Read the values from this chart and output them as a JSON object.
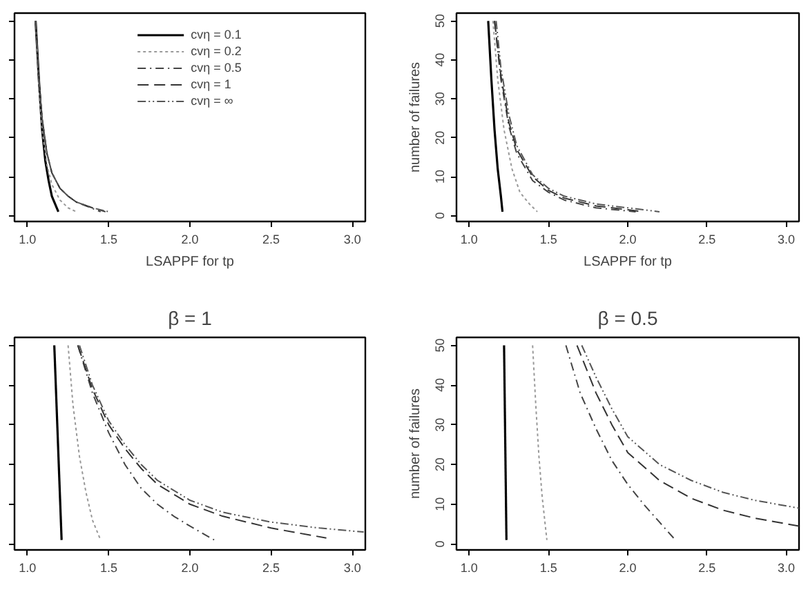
{
  "chart_data": [
    {
      "type": "line",
      "xlabel": "LSAPPF for tp",
      "xlim": [
        0.92,
        3.08
      ],
      "xticks": [
        {
          "value": 1,
          "label": "1.0"
        },
        {
          "value": 1.5,
          "label": "1.5"
        },
        {
          "value": 2,
          "label": "2.0"
        },
        {
          "value": 2.5,
          "label": "2.5"
        },
        {
          "value": 3,
          "label": "3.0"
        }
      ],
      "ylim": [
        -1.5,
        52
      ],
      "yticks": [
        {
          "value": 0,
          "label": null
        },
        {
          "value": 10,
          "label": null
        },
        {
          "value": 20,
          "label": null
        },
        {
          "value": 30,
          "label": null
        },
        {
          "value": 40,
          "label": null
        },
        {
          "value": 50,
          "label": null
        }
      ],
      "tick_labels": "x",
      "grid": false,
      "legend": "top",
      "series": [
        {
          "name": "cvη = 0.1",
          "color": "#000000",
          "line_style": "solid",
          "x": [
            1.05,
            1.07,
            1.09,
            1.11,
            1.13,
            1.15,
            1.17,
            1.19
          ],
          "values": [
            50,
            35,
            22,
            14,
            9,
            5,
            3,
            1
          ]
        },
        {
          "name": "cvη = 0.2",
          "color": "#999999",
          "line_style": "dotted",
          "x": [
            1.05,
            1.07,
            1.09,
            1.12,
            1.15,
            1.2,
            1.25,
            1.3
          ],
          "values": [
            50,
            33,
            22,
            13,
            8,
            4,
            2,
            1
          ]
        },
        {
          "name": "cvη = 0.5",
          "color": "#444444",
          "line_style": "dashdot",
          "x": [
            1.05,
            1.07,
            1.09,
            1.12,
            1.15,
            1.2,
            1.25,
            1.3,
            1.45
          ],
          "values": [
            50,
            35,
            25,
            16,
            11,
            7,
            5,
            3.5,
            1
          ]
        },
        {
          "name": "cvη = 1",
          "color": "#333333",
          "line_style": "dashed",
          "x": [
            1.05,
            1.07,
            1.09,
            1.12,
            1.15,
            1.2,
            1.25,
            1.3,
            1.4,
            1.48
          ],
          "values": [
            50,
            35,
            25,
            16,
            11,
            7,
            5,
            3.5,
            2,
            1
          ]
        },
        {
          "name": "cvη = ∞",
          "color": "#555555",
          "line_style": "dashdotdot",
          "x": [
            1.05,
            1.07,
            1.09,
            1.12,
            1.15,
            1.2,
            1.25,
            1.3,
            1.4,
            1.5
          ],
          "values": [
            50,
            35,
            25,
            16,
            11,
            7,
            5,
            3.5,
            2,
            1
          ]
        }
      ]
    },
    {
      "type": "line",
      "xlabel": "LSAPPF for tp",
      "ylabel": "number of failures",
      "xlim": [
        0.92,
        3.08
      ],
      "xticks": [
        {
          "value": 1,
          "label": "1.0"
        },
        {
          "value": 1.5,
          "label": "1.5"
        },
        {
          "value": 2,
          "label": "2.0"
        },
        {
          "value": 2.5,
          "label": "2.5"
        },
        {
          "value": 3,
          "label": "3.0"
        }
      ],
      "ylim": [
        -1.5,
        52
      ],
      "yticks": [
        0,
        10,
        20,
        30,
        40,
        50
      ],
      "grid": false,
      "series": [
        {
          "color": "#000000",
          "line_style": "solid",
          "x": [
            1.12,
            1.14,
            1.16,
            1.18,
            1.2,
            1.21
          ],
          "values": [
            50,
            35,
            22,
            12,
            5,
            1
          ]
        },
        {
          "color": "#999999",
          "line_style": "dotted",
          "x": [
            1.15,
            1.18,
            1.22,
            1.27,
            1.32,
            1.38,
            1.43
          ],
          "values": [
            50,
            35,
            22,
            12,
            6,
            3,
            1
          ]
        },
        {
          "color": "#444444",
          "line_style": "dashdot",
          "x": [
            1.16,
            1.2,
            1.25,
            1.3,
            1.4,
            1.5,
            1.6,
            1.8,
            2.05
          ],
          "values": [
            50,
            35,
            23,
            16,
            9,
            6,
            4,
            2,
            1
          ]
        },
        {
          "color": "#333333",
          "line_style": "dashed",
          "x": [
            1.16,
            1.2,
            1.25,
            1.3,
            1.4,
            1.5,
            1.6,
            1.8,
            2.0,
            2.1
          ],
          "values": [
            50,
            36,
            24,
            17,
            10,
            6.5,
            4.5,
            2.5,
            1.5,
            1
          ]
        },
        {
          "color": "#555555",
          "line_style": "dashdotdot",
          "x": [
            1.17,
            1.2,
            1.25,
            1.3,
            1.4,
            1.5,
            1.6,
            1.8,
            2.0,
            2.2
          ],
          "values": [
            50,
            38,
            26,
            18,
            10.5,
            7,
            5,
            3,
            2,
            1
          ]
        }
      ]
    },
    {
      "type": "line",
      "title": "β = 1",
      "xlim": [
        0.92,
        3.08
      ],
      "xticks": [
        {
          "value": 1,
          "label": "1.0"
        },
        {
          "value": 1.5,
          "label": "1.5"
        },
        {
          "value": 2,
          "label": "2.0"
        },
        {
          "value": 2.5,
          "label": "2.5"
        },
        {
          "value": 3,
          "label": "3.0"
        }
      ],
      "ylim": [
        -1.5,
        52
      ],
      "yticks": [
        {
          "value": 0,
          "label": null
        },
        {
          "value": 10,
          "label": null
        },
        {
          "value": 20,
          "label": null
        },
        {
          "value": 30,
          "label": null
        },
        {
          "value": 40,
          "label": null
        },
        {
          "value": 50,
          "label": null
        }
      ],
      "tick_labels": "x",
      "grid": false,
      "series": [
        {
          "color": "#000000",
          "line_style": "solid",
          "x": [
            1.165,
            1.21
          ],
          "values": [
            50,
            1
          ]
        },
        {
          "color": "#999999",
          "line_style": "dotted",
          "x": [
            1.25,
            1.28,
            1.32,
            1.36,
            1.4,
            1.45
          ],
          "values": [
            50,
            35,
            22,
            13,
            6,
            1
          ]
        },
        {
          "color": "#444444",
          "line_style": "dashdot",
          "x": [
            1.31,
            1.4,
            1.5,
            1.6,
            1.7,
            1.8,
            1.9,
            2.0,
            2.15
          ],
          "values": [
            50,
            38,
            28,
            20,
            14,
            10,
            7,
            4.5,
            1
          ]
        },
        {
          "color": "#333333",
          "line_style": "dashed",
          "x": [
            1.31,
            1.4,
            1.5,
            1.6,
            1.7,
            1.8,
            2.0,
            2.2,
            2.5,
            2.84
          ],
          "values": [
            50,
            39,
            30,
            24,
            19,
            15,
            10,
            7,
            4,
            1.5
          ]
        },
        {
          "color": "#555555",
          "line_style": "dashdotdot",
          "x": [
            1.32,
            1.4,
            1.5,
            1.6,
            1.7,
            1.8,
            2.0,
            2.2,
            2.5,
            2.8,
            3.07
          ],
          "values": [
            50,
            40,
            31,
            25,
            20,
            16,
            11,
            8,
            5.5,
            4,
            3
          ]
        }
      ]
    },
    {
      "type": "line",
      "title": "β = 0.5",
      "ylabel": "number of failures",
      "xlim": [
        0.92,
        3.08
      ],
      "xticks": [
        {
          "value": 1,
          "label": "1.0"
        },
        {
          "value": 1.5,
          "label": "1.5"
        },
        {
          "value": 2,
          "label": "2.0"
        },
        {
          "value": 2.5,
          "label": "2.5"
        },
        {
          "value": 3,
          "label": "3.0"
        }
      ],
      "ylim": [
        -1.5,
        52
      ],
      "yticks": [
        0,
        10,
        20,
        30,
        40,
        50
      ],
      "grid": false,
      "series": [
        {
          "color": "#000000",
          "line_style": "solid",
          "x": [
            1.22,
            1.235
          ],
          "values": [
            50,
            1
          ]
        },
        {
          "color": "#999999",
          "line_style": "dotted",
          "x": [
            1.4,
            1.42,
            1.44,
            1.46,
            1.49
          ],
          "values": [
            50,
            35,
            22,
            12,
            1
          ]
        },
        {
          "color": "#444444",
          "line_style": "dashdot",
          "x": [
            1.61,
            1.7,
            1.8,
            1.9,
            2.0,
            2.1,
            2.2,
            2.3
          ],
          "values": [
            50,
            38,
            29,
            21,
            15,
            10,
            5.5,
            1
          ]
        },
        {
          "color": "#333333",
          "line_style": "dashed",
          "x": [
            1.68,
            1.8,
            1.9,
            2.0,
            2.2,
            2.4,
            2.6,
            2.8,
            3.08
          ],
          "values": [
            50,
            38,
            30,
            23,
            16,
            11.5,
            8.5,
            6.5,
            4.5
          ]
        },
        {
          "color": "#555555",
          "line_style": "dashdotdot",
          "x": [
            1.71,
            1.8,
            1.9,
            2.0,
            2.2,
            2.4,
            2.6,
            2.8,
            3.08
          ],
          "values": [
            50,
            42,
            34,
            27,
            20,
            16,
            13,
            11,
            9
          ]
        }
      ]
    }
  ]
}
